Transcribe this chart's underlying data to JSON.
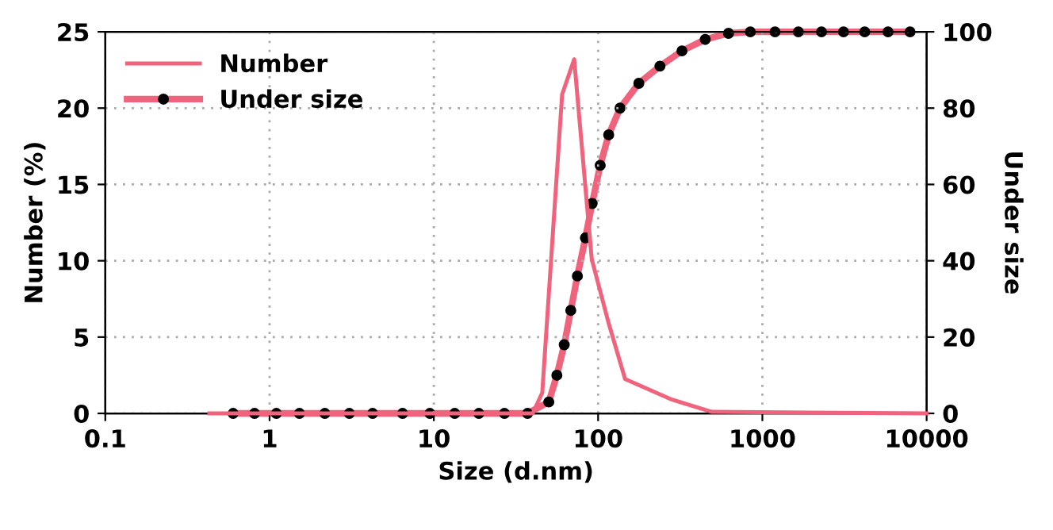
{
  "chart_data": {
    "type": "line",
    "xlabel": "Size (d.nm)",
    "ylabel": "Number (%)",
    "y2label": "Under size",
    "log": "x",
    "xlim": [
      0.1,
      10000
    ],
    "xticks": [
      0.1,
      1,
      10,
      100,
      1000,
      10000
    ],
    "ylim": [
      0,
      25
    ],
    "yticks": [
      0,
      5,
      10,
      15,
      20,
      25
    ],
    "y2lim": [
      0,
      100
    ],
    "y2ticks": [
      0,
      20,
      40,
      60,
      80,
      100
    ],
    "grid": true,
    "legend": "top left",
    "series": [
      {
        "name": "Number",
        "color": "#f0637c",
        "marker": "none",
        "x": [
          0.43,
          40,
          45.7,
          60.4,
          71.5,
          91.5,
          116,
          146,
          282,
          493,
          10000
        ],
        "values": [
          0,
          0,
          1.35,
          20.9,
          23.2,
          10.1,
          5.9,
          2.25,
          0.9,
          0.1,
          0
        ]
      },
      {
        "name": "Under size",
        "color": "#f0637c",
        "marker": "circle",
        "axis": "y2",
        "x": [
          0.6,
          0.81,
          1.1,
          1.52,
          2.17,
          3.06,
          4.24,
          6.45,
          9.46,
          13.4,
          18.8,
          26.9,
          37.2,
          50.1,
          56.1,
          62.2,
          68.2,
          74.8,
          83.7,
          92,
          103,
          116,
          136,
          177,
          238,
          324,
          449,
          622,
          845,
          1194,
          1656,
          2291,
          3119,
          4198,
          5821,
          7925
        ],
        "values": [
          0,
          0,
          0,
          0,
          0,
          0,
          0,
          0,
          0,
          0,
          0,
          0,
          0,
          3,
          10,
          18,
          27,
          36,
          46,
          55,
          65,
          73,
          80,
          86.5,
          91,
          95,
          98,
          99.6,
          100,
          100,
          100,
          100,
          100,
          100,
          100,
          100
        ]
      }
    ]
  }
}
